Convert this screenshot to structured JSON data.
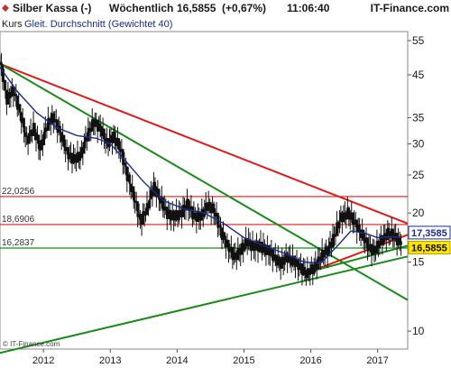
{
  "header": {
    "instrument": "Silber Kassa (-)",
    "interval": "Wöchentlich",
    "price": "16,5855",
    "change": "(+0,67%)",
    "time": "11:06:40",
    "brand": "IT-Finance.com",
    "legend_kurs": "Kurs",
    "legend_ma": "Gleit. Durchschnitt (Gewichtet 40)"
  },
  "copyright": "© IT-Finance.com",
  "colors": {
    "price": "#111111",
    "moving_average": "#1c2c8c",
    "resistance": "#e01818",
    "support": "#1a8a1a",
    "current_tag": "#ffe600",
    "ma_tag": "#ffffff"
  },
  "chart_data": {
    "type": "candlestick",
    "y_scale": "log",
    "y_ticks": [
      "55",
      "45",
      "35",
      "30",
      "25",
      "20",
      "15",
      "10"
    ],
    "x_ticks": [
      "2012",
      "2013",
      "2014",
      "2015",
      "2016",
      "2017"
    ],
    "ylim": [
      9,
      58
    ],
    "xlim": [
      2011.35,
      2017.45
    ],
    "grid": false,
    "close_series": [
      [
        2011.35,
        48.5
      ],
      [
        2011.45,
        39.0
      ],
      [
        2011.55,
        41.0
      ],
      [
        2011.65,
        36.0
      ],
      [
        2011.75,
        30.5
      ],
      [
        2011.85,
        33.0
      ],
      [
        2011.95,
        29.0
      ],
      [
        2012.05,
        33.5
      ],
      [
        2012.15,
        35.0
      ],
      [
        2012.25,
        32.0
      ],
      [
        2012.35,
        28.5
      ],
      [
        2012.45,
        27.5
      ],
      [
        2012.55,
        27.8
      ],
      [
        2012.65,
        31.5
      ],
      [
        2012.75,
        34.0
      ],
      [
        2012.85,
        33.0
      ],
      [
        2012.95,
        30.0
      ],
      [
        2013.05,
        31.5
      ],
      [
        2013.15,
        29.0
      ],
      [
        2013.25,
        25.0
      ],
      [
        2013.35,
        22.0
      ],
      [
        2013.45,
        19.0
      ],
      [
        2013.55,
        20.5
      ],
      [
        2013.65,
        23.5
      ],
      [
        2013.75,
        21.5
      ],
      [
        2013.85,
        20.0
      ],
      [
        2013.95,
        19.5
      ],
      [
        2014.05,
        20.0
      ],
      [
        2014.15,
        21.0
      ],
      [
        2014.25,
        19.7
      ],
      [
        2014.35,
        19.5
      ],
      [
        2014.45,
        21.0
      ],
      [
        2014.55,
        20.3
      ],
      [
        2014.65,
        18.0
      ],
      [
        2014.75,
        16.5
      ],
      [
        2014.85,
        15.5
      ],
      [
        2014.95,
        16.0
      ],
      [
        2015.05,
        17.0
      ],
      [
        2015.15,
        16.3
      ],
      [
        2015.25,
        16.5
      ],
      [
        2015.35,
        16.0
      ],
      [
        2015.45,
        15.5
      ],
      [
        2015.55,
        14.8
      ],
      [
        2015.65,
        15.5
      ],
      [
        2015.75,
        15.0
      ],
      [
        2015.85,
        14.5
      ],
      [
        2015.95,
        14.0
      ],
      [
        2016.05,
        14.5
      ],
      [
        2016.15,
        15.5
      ],
      [
        2016.25,
        16.0
      ],
      [
        2016.35,
        17.5
      ],
      [
        2016.45,
        19.5
      ],
      [
        2016.55,
        20.0
      ],
      [
        2016.65,
        19.0
      ],
      [
        2016.75,
        17.8
      ],
      [
        2016.85,
        16.5
      ],
      [
        2016.95,
        16.0
      ],
      [
        2017.05,
        17.0
      ],
      [
        2017.15,
        17.8
      ],
      [
        2017.25,
        17.5
      ],
      [
        2017.35,
        16.5855
      ]
    ],
    "moving_average": [
      [
        2011.35,
        47.0
      ],
      [
        2011.6,
        41.0
      ],
      [
        2011.9,
        36.0
      ],
      [
        2012.2,
        33.0
      ],
      [
        2012.5,
        31.5
      ],
      [
        2012.8,
        31.0
      ],
      [
        2013.0,
        30.0
      ],
      [
        2013.2,
        27.5
      ],
      [
        2013.5,
        24.0
      ],
      [
        2013.8,
        21.5
      ],
      [
        2014.1,
        20.5
      ],
      [
        2014.4,
        20.0
      ],
      [
        2014.7,
        18.8
      ],
      [
        2015.0,
        17.3
      ],
      [
        2015.3,
        16.5
      ],
      [
        2015.6,
        15.8
      ],
      [
        2015.9,
        15.0
      ],
      [
        2016.15,
        14.9
      ],
      [
        2016.4,
        16.5
      ],
      [
        2016.6,
        18.0
      ],
      [
        2016.8,
        17.8
      ],
      [
        2017.0,
        17.3
      ],
      [
        2017.2,
        17.4
      ],
      [
        2017.35,
        17.3585
      ]
    ],
    "resistance_levels": [
      {
        "label": "22,0256",
        "value": 22.0256
      },
      {
        "label": "18,6906",
        "value": 18.6906
      }
    ],
    "support_levels": [
      {
        "label": "16,2837",
        "value": 16.2837
      }
    ],
    "trendlines": [
      {
        "kind": "resistance",
        "from": [
          2011.35,
          48.0
        ],
        "to": [
          2017.45,
          18.8
        ]
      },
      {
        "kind": "support",
        "from": [
          2011.35,
          48.0
        ],
        "to": [
          2017.45,
          12.0
        ]
      },
      {
        "kind": "support",
        "from": [
          2011.35,
          8.8
        ],
        "to": [
          2017.45,
          15.5
        ]
      },
      {
        "kind": "resistance",
        "from": [
          2016.0,
          14.2
        ],
        "to": [
          2017.45,
          17.6
        ]
      },
      {
        "kind": "support",
        "from": [
          2016.0,
          14.2
        ],
        "to": [
          2017.45,
          16.5
        ]
      }
    ],
    "last_value_tags": [
      {
        "label": "17,3585",
        "value": 17.3585,
        "kind": "moving_average"
      },
      {
        "label": "16,5855",
        "value": 16.5855,
        "kind": "price"
      }
    ]
  }
}
